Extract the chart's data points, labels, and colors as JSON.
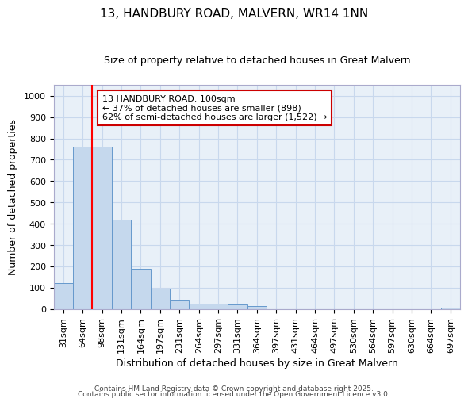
{
  "title1": "13, HANDBURY ROAD, MALVERN, WR14 1NN",
  "title2": "Size of property relative to detached houses in Great Malvern",
  "xlabel": "Distribution of detached houses by size in Great Malvern",
  "ylabel": "Number of detached properties",
  "categories": [
    "31sqm",
    "64sqm",
    "98sqm",
    "131sqm",
    "164sqm",
    "197sqm",
    "231sqm",
    "264sqm",
    "297sqm",
    "331sqm",
    "364sqm",
    "397sqm",
    "431sqm",
    "464sqm",
    "497sqm",
    "530sqm",
    "564sqm",
    "597sqm",
    "630sqm",
    "664sqm",
    "697sqm"
  ],
  "values": [
    120,
    760,
    760,
    420,
    190,
    95,
    45,
    25,
    25,
    20,
    15,
    0,
    0,
    0,
    0,
    0,
    0,
    0,
    0,
    0,
    5
  ],
  "bar_color": "#c5d8ed",
  "bar_edge_color": "#6699cc",
  "redline_x": 2.5,
  "annotation_title": "13 HANDBURY ROAD: 100sqm",
  "annotation_line2": "← 37% of detached houses are smaller (898)",
  "annotation_line3": "62% of semi-detached houses are larger (1,522) →",
  "annotation_box_facecolor": "#ffffff",
  "annotation_box_edgecolor": "#cc0000",
  "ylim": [
    0,
    1050
  ],
  "yticks": [
    0,
    100,
    200,
    300,
    400,
    500,
    600,
    700,
    800,
    900,
    1000
  ],
  "grid_color": "#c8d8ed",
  "plot_bg_color": "#e8f0f8",
  "fig_bg_color": "#ffffff",
  "title1_fontsize": 11,
  "title2_fontsize": 9,
  "xlabel_fontsize": 9,
  "ylabel_fontsize": 9,
  "tick_fontsize": 8,
  "annotation_fontsize": 8,
  "footer1": "Contains HM Land Registry data © Crown copyright and database right 2025.",
  "footer2": "Contains public sector information licensed under the Open Government Licence v3.0.",
  "footer_fontsize": 6.5
}
